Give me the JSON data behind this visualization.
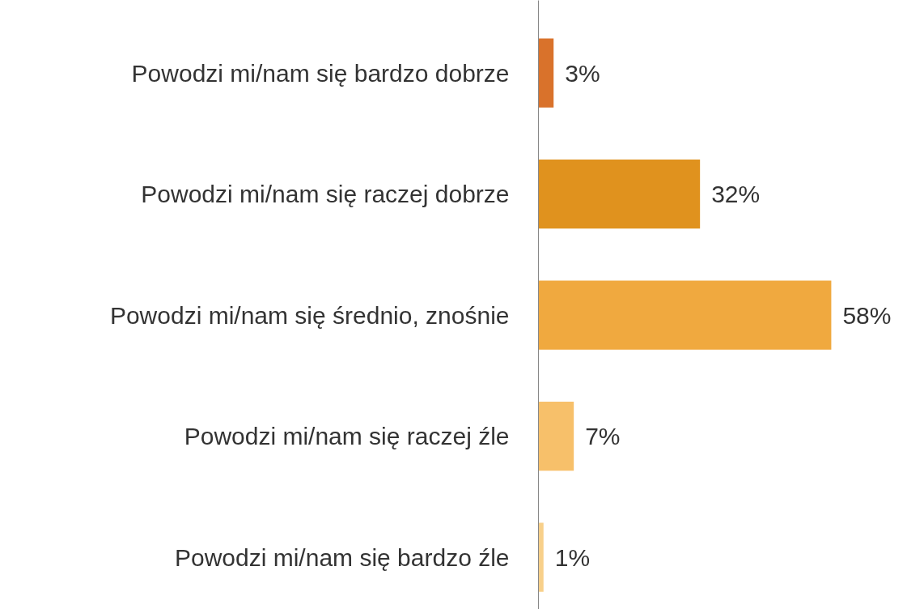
{
  "chart_data": {
    "type": "bar",
    "orientation": "horizontal",
    "categories": [
      "Powodzi mi/nam się bardzo dobrze",
      "Powodzi mi/nam się raczej dobrze",
      "Powodzi mi/nam się średnio, znośnie",
      "Powodzi mi/nam się raczej źle",
      "Powodzi mi/nam się bardzo źle"
    ],
    "values": [
      3,
      32,
      58,
      7,
      1
    ],
    "colors": [
      "#d9722b",
      "#e0921e",
      "#f0a93f",
      "#f7c06a",
      "#f8d08a"
    ],
    "value_labels": [
      "3%",
      "32%",
      "58%",
      "7%",
      "1%"
    ],
    "grid": false
  }
}
